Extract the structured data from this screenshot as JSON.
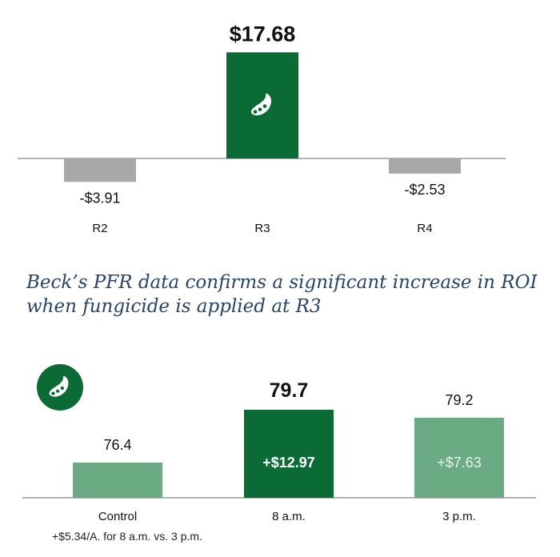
{
  "chart_data": [
    {
      "type": "bar",
      "categories": [
        "R2",
        "R3",
        "R4"
      ],
      "values": [
        -3.91,
        17.68,
        -2.53
      ],
      "data_labels": [
        "-$3.91",
        "$17.68",
        "-$2.53"
      ],
      "ylim": [
        -4,
        20
      ],
      "colors": {
        "negative": "#a8a8a8",
        "positive": "#0a6b35"
      },
      "highlight_index": 1,
      "icon": "soybean-pod-icon"
    },
    {
      "type": "bar",
      "categories": [
        "Control",
        "8 a.m.",
        "3 p.m."
      ],
      "values": [
        76.4,
        79.7,
        79.2
      ],
      "data_labels": [
        "76.4",
        "79.7",
        "79.2"
      ],
      "inner_labels": [
        "",
        "+$12.97",
        "+$7.63"
      ],
      "ylim": [
        74.2,
        80
      ],
      "colors": [
        "#6aab83",
        "#0a6b35",
        "#6aab83"
      ],
      "highlight_index": 1,
      "icon": "soybean-pod-icon"
    }
  ],
  "caption": "Beck’s PFR data confirms a significant increase in ROI when fungicide is applied at R3",
  "footnote": "+$5.34/A. for 8 a.m. vs. 3 p.m."
}
